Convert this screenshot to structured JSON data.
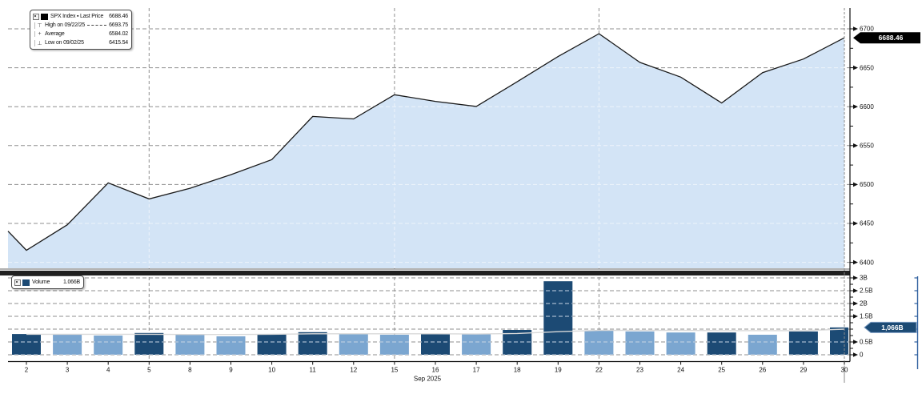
{
  "window": {
    "background": "#ffffff"
  },
  "legend": {
    "rows": [
      {
        "marker": "series-swatch",
        "glyph": "",
        "label": "SPX Index ▪ Last Price",
        "value": "6688.46"
      },
      {
        "marker": "high-marker",
        "glyph": "⊤",
        "label": "High on 09/22/25",
        "value": "6693.75"
      },
      {
        "marker": "average-marker",
        "glyph": "+",
        "label": "Average",
        "value": "6584.02"
      },
      {
        "marker": "low-marker",
        "glyph": "⊥",
        "label": "Low on 09/02/25",
        "value": "6415.54"
      }
    ]
  },
  "volume_legend": {
    "label": "Volume",
    "value": "1.066B"
  },
  "badges": {
    "last_price": "6688.46",
    "last_volume": "1,066B"
  },
  "colors": {
    "area_fill": "#d3e4f6",
    "line": "#1a1a1a",
    "bar_dark": "#1c4a74",
    "bar_light": "#7ba6d0",
    "grid": "#8f8f8f",
    "grid_inner": "#eef4fb",
    "grid_inner_bars": "#c7d4e3",
    "axis": "#111111",
    "price_badge_bg": "#000000",
    "volume_badge_bg": "#1c4a74",
    "volume_badge_border": "#7b9cc2",
    "volume_axis_accent": "#2e5f9e",
    "avg_line": "#d9d9d9",
    "separator": "#202020",
    "tracker": "#8a8a8a"
  },
  "chart_data": {
    "type": "area",
    "title": "SPX Index ▪ Last Price",
    "x_caption": "Sep 2025",
    "x": [
      "2",
      "3",
      "4",
      "5",
      "8",
      "9",
      "10",
      "11",
      "12",
      "15",
      "16",
      "17",
      "18",
      "19",
      "22",
      "23",
      "24",
      "25",
      "26",
      "29",
      "30"
    ],
    "series": [
      {
        "name": "SPX Index Last Price",
        "type": "area",
        "values": [
          6415.54,
          6448.26,
          6502.08,
          6481.5,
          6495.15,
          6512.61,
          6532.04,
          6587.47,
          6584.29,
          6615.28,
          6606.76,
          6600.35,
          6631.96,
          6664.36,
          6693.75,
          6656.92,
          6637.97,
          6604.72,
          6643.7,
          6661.21,
          6688.46
        ]
      },
      {
        "name": "Volume (billions of shares)",
        "type": "bar",
        "values": [
          0.81,
          0.78,
          0.75,
          0.85,
          0.78,
          0.72,
          0.81,
          0.88,
          0.81,
          0.78,
          0.81,
          0.81,
          0.97,
          2.87,
          0.95,
          0.91,
          0.87,
          0.87,
          0.78,
          0.91,
          1.066
        ],
        "bar_styles": [
          "dark",
          "light",
          "light",
          "dark",
          "light",
          "light",
          "dark",
          "dark",
          "light",
          "light",
          "dark",
          "light",
          "dark",
          "dark",
          "light",
          "light",
          "light",
          "dark",
          "light",
          "dark",
          "dark"
        ]
      },
      {
        "name": "Volume average (billions)",
        "type": "line",
        "values": [
          0.8,
          0.8,
          0.8,
          0.8,
          0.79,
          0.79,
          0.8,
          0.82,
          0.82,
          0.82,
          0.82,
          0.81,
          0.83,
          0.9,
          0.95,
          0.95,
          0.95,
          0.94,
          0.94,
          0.94,
          1.0
        ]
      }
    ],
    "left_edge_value": 6440,
    "stats": {
      "last_price": 6688.46,
      "high": 6693.75,
      "high_date": "09/22/25",
      "average": 6584.02,
      "low": 6415.54,
      "low_date": "09/02/25",
      "last_volume_billions": 1.066
    },
    "price_axis": {
      "tick_labels": [
        "6700",
        "6650",
        "6600",
        "6550",
        "6500",
        "6450",
        "6400"
      ],
      "tick_values": [
        6700,
        6650,
        6600,
        6550,
        6500,
        6450,
        6400
      ],
      "minor_tick_values": [
        6425,
        6475,
        6525,
        6575,
        6625,
        6675
      ],
      "visible_range": [
        6392,
        6726
      ]
    },
    "volume_axis": {
      "tick_labels": [
        "3B",
        "2.5B",
        "2B",
        "1.5B",
        "0.5B",
        "0"
      ],
      "tick_values": [
        3,
        2.5,
        2,
        1.5,
        0.5,
        0
      ],
      "unlabeled_tick_values": [
        1
      ],
      "minor_tick_values": [
        0.25,
        0.75,
        1.25,
        1.75,
        2.25,
        2.75
      ],
      "range": [
        0,
        3.1
      ]
    },
    "week_gridline_dates": [
      "5",
      "15",
      "22"
    ],
    "tracker_date": "30",
    "grid": true,
    "legend_position": "top-left"
  }
}
